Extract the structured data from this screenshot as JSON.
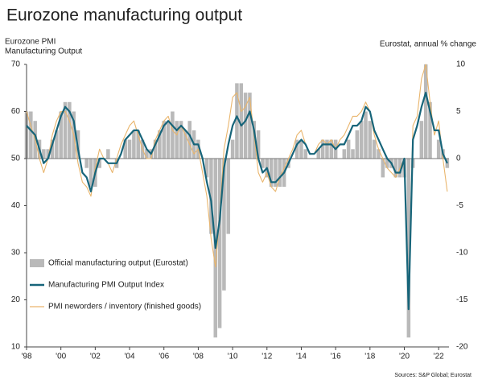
{
  "chart_data": {
    "type": "combo",
    "title": "Eurozone manufacturing output",
    "ylabel": [
      "Eurozone PMI",
      "Manufacturing Output"
    ],
    "y2label": "Eurostat, annual % change",
    "source": "Sources: S&P Global; Eurostat",
    "legend": "lower left",
    "x": [
      1998,
      1998.25,
      1998.5,
      1998.75,
      1999,
      1999.25,
      1999.5,
      1999.75,
      2000,
      2000.25,
      2000.5,
      2000.75,
      2001,
      2001.25,
      2001.5,
      2001.75,
      2002,
      2002.25,
      2002.5,
      2002.75,
      2003,
      2003.25,
      2003.5,
      2003.75,
      2004,
      2004.25,
      2004.5,
      2004.75,
      2005,
      2005.25,
      2005.5,
      2005.75,
      2006,
      2006.25,
      2006.5,
      2006.75,
      2007,
      2007.25,
      2007.5,
      2007.75,
      2008,
      2008.25,
      2008.5,
      2008.75,
      2009,
      2009.25,
      2009.5,
      2009.75,
      2010,
      2010.25,
      2010.5,
      2010.75,
      2011,
      2011.25,
      2011.5,
      2011.75,
      2012,
      2012.25,
      2012.5,
      2012.75,
      2013,
      2013.25,
      2013.5,
      2013.75,
      2014,
      2014.25,
      2014.5,
      2014.75,
      2015,
      2015.25,
      2015.5,
      2015.75,
      2016,
      2016.25,
      2016.5,
      2016.75,
      2017,
      2017.25,
      2017.5,
      2017.75,
      2018,
      2018.25,
      2018.5,
      2018.75,
      2019,
      2019.25,
      2019.5,
      2019.75,
      2020,
      2020.25,
      2020.5,
      2020.75,
      2021,
      2021.25,
      2021.5,
      2021.75,
      2022,
      2022.25,
      2022.5
    ],
    "xlim": [
      1998,
      2022.6
    ],
    "xticks": [
      {
        "value": 1998,
        "label": "'98"
      },
      {
        "value": 2000,
        "label": "'00"
      },
      {
        "value": 2002,
        "label": "'02"
      },
      {
        "value": 2004,
        "label": "'04"
      },
      {
        "value": 2006,
        "label": "'06"
      },
      {
        "value": 2008,
        "label": "'08"
      },
      {
        "value": 2010,
        "label": "'10"
      },
      {
        "value": 2012,
        "label": "'12"
      },
      {
        "value": 2014,
        "label": "'14"
      },
      {
        "value": 2016,
        "label": "'16"
      },
      {
        "value": 2018,
        "label": "'18"
      },
      {
        "value": 2020,
        "label": "'20"
      },
      {
        "value": 2022,
        "label": "'22"
      }
    ],
    "ylim": [
      10,
      70
    ],
    "yticks": [
      10,
      20,
      30,
      40,
      50,
      60,
      70
    ],
    "y2lim": [
      -20,
      10
    ],
    "y2ticks": [
      -20,
      -15,
      -10,
      -5,
      0,
      5,
      10
    ],
    "series": [
      {
        "name": "Official manufacturing output (Eurostat)",
        "type": "bar",
        "axis": "y2",
        "color": "#b9b9b9",
        "values": [
          5,
          5,
          4,
          2,
          1,
          1,
          2,
          3,
          5,
          6,
          6,
          5,
          3,
          0,
          -1,
          -3,
          -3,
          -1,
          0,
          1,
          0,
          -1,
          0,
          2,
          2,
          3,
          3,
          2,
          1,
          1,
          2,
          3,
          4,
          4,
          5,
          4,
          4,
          3,
          4,
          3,
          2,
          0,
          -2,
          -8,
          -19,
          -18,
          -14,
          -8,
          2,
          8,
          8,
          7,
          7,
          4,
          3,
          -1,
          -2,
          -3,
          -3,
          -3,
          -3,
          -1,
          0,
          2,
          2,
          1,
          0,
          0,
          1,
          2,
          2,
          2,
          2,
          0,
          1,
          2,
          1,
          3,
          4,
          5,
          4,
          2,
          1,
          -2,
          -1,
          -1,
          -2,
          -2,
          -2,
          -19,
          -1,
          0,
          4,
          10,
          6,
          0,
          2,
          1,
          -1
        ]
      },
      {
        "name": "Manufacturing PMI Output Index",
        "type": "line",
        "color": "#17657a",
        "values": [
          57,
          56,
          55,
          52,
          49,
          50,
          53,
          56,
          59,
          61,
          60,
          58,
          52,
          47,
          46,
          43,
          47,
          50,
          50,
          49,
          49,
          49,
          51,
          54,
          55,
          56,
          56,
          54,
          52,
          51,
          53,
          55,
          57,
          58,
          57,
          56,
          57,
          56,
          55,
          53,
          53,
          50,
          45,
          41,
          31,
          37,
          48,
          53,
          57,
          59,
          57,
          58,
          60,
          56,
          50,
          47,
          48,
          45,
          45,
          46,
          47,
          49,
          51,
          53,
          54,
          53,
          51,
          51,
          52,
          53,
          53,
          53,
          52,
          53,
          53,
          55,
          57,
          57,
          58,
          61,
          60,
          56,
          54,
          52,
          50,
          49,
          47,
          47,
          50,
          18,
          54,
          57,
          61,
          64,
          60,
          56,
          56,
          51,
          49
        ]
      },
      {
        "name": "PMI neworders / inventory (finished goods)",
        "type": "line",
        "color": "#e9b56c",
        "values": [
          60,
          57,
          54,
          50,
          47,
          50,
          55,
          58,
          60,
          60,
          58,
          55,
          49,
          45,
          44,
          42,
          48,
          52,
          50,
          49,
          47,
          50,
          53,
          55,
          57,
          58,
          55,
          52,
          50,
          50,
          54,
          56,
          58,
          59,
          56,
          55,
          57,
          55,
          53,
          51,
          52,
          47,
          42,
          33,
          27,
          38,
          52,
          57,
          63,
          64,
          60,
          61,
          63,
          55,
          47,
          45,
          47,
          44,
          43,
          46,
          48,
          50,
          52,
          55,
          56,
          53,
          51,
          51,
          53,
          54,
          53,
          54,
          52,
          54,
          55,
          57,
          59,
          59,
          60,
          62,
          60,
          55,
          52,
          50,
          48,
          47,
          46,
          48,
          50,
          20,
          57,
          59,
          67,
          70,
          62,
          55,
          58,
          50,
          43
        ]
      }
    ]
  }
}
